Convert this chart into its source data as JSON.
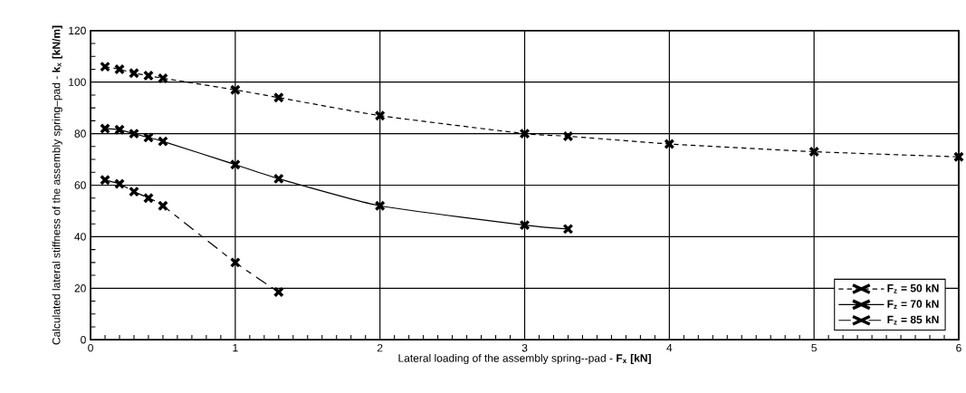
{
  "chart_data": {
    "type": "line",
    "xlabel": "Lateral loading of the assembly spring--pad - **F$_{x}$ [kN]**",
    "ylabel": "Calculated lateral stiffness of the assembly spring–pad - **k$_{x}$ [kN/m]**",
    "xlim": [
      0,
      6
    ],
    "xticks": [
      0,
      1,
      2,
      3,
      4,
      5,
      6
    ],
    "ylim": [
      0,
      120
    ],
    "yticks": [
      0,
      20,
      40,
      60,
      80,
      100,
      120
    ],
    "grid": true,
    "legend": "bottom right",
    "marker": "cross",
    "series": [
      {
        "name": "F$_{z}$ =  50 kN",
        "color": "#000000",
        "line_style": "dashed",
        "x": [
          0.1,
          0.2,
          0.3,
          0.4,
          0.5,
          1,
          1.3,
          2,
          3,
          3.3,
          4,
          5,
          6
        ],
        "values": [
          106,
          105,
          103.5,
          102.5,
          101.5,
          97,
          94,
          87,
          80,
          79,
          76,
          73,
          71
        ]
      },
      {
        "name": "F$_{z}$ =  70 kN",
        "color": "#000000",
        "line_style": "solid",
        "x": [
          0.1,
          0.2,
          0.3,
          0.4,
          0.5,
          1,
          1.3,
          2,
          3,
          3.3
        ],
        "values": [
          82,
          81.5,
          80,
          78.5,
          77,
          68,
          62.5,
          52,
          44.5,
          43
        ]
      },
      {
        "name": "F$_{z}$ =  85 kN",
        "color": "#000000",
        "line_style": "dashdot",
        "x": [
          0.1,
          0.2,
          0.3,
          0.4,
          0.5,
          1,
          1.3
        ],
        "values": [
          62,
          60.5,
          57.5,
          55,
          52,
          30,
          18.5
        ]
      }
    ]
  }
}
